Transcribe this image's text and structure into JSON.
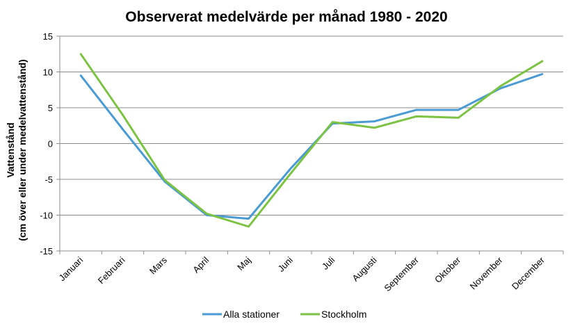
{
  "chart_data": {
    "type": "line",
    "title": "Observerat medelvärde per månad 1980  - 2020",
    "ylabel_line1": "Vattenstånd",
    "ylabel_line2": "(cm över eller under medelvattenstånd)",
    "xlabel": "",
    "categories": [
      "Januari",
      "Februari",
      "Mars",
      "April",
      "Maj",
      "Juni",
      "Juli",
      "Augusti",
      "September",
      "Oktober",
      "November",
      "December"
    ],
    "ylim": [
      -15,
      15
    ],
    "yticks": [
      -15,
      -10,
      -5,
      0,
      5,
      10,
      15
    ],
    "grid": true,
    "legend": "bottom",
    "series": [
      {
        "name": "Alla stationer",
        "color": "#4a9ad4",
        "values": [
          9.5,
          2.0,
          -5.3,
          -10.0,
          -10.5,
          -3.5,
          2.8,
          3.1,
          4.7,
          4.7,
          7.7,
          9.7
        ]
      },
      {
        "name": "Stockholm",
        "color": "#7cc243",
        "values": [
          12.5,
          4.0,
          -5.1,
          -9.8,
          -11.6,
          -4.2,
          3.0,
          2.2,
          3.8,
          3.6,
          8.0,
          11.5
        ]
      }
    ]
  }
}
